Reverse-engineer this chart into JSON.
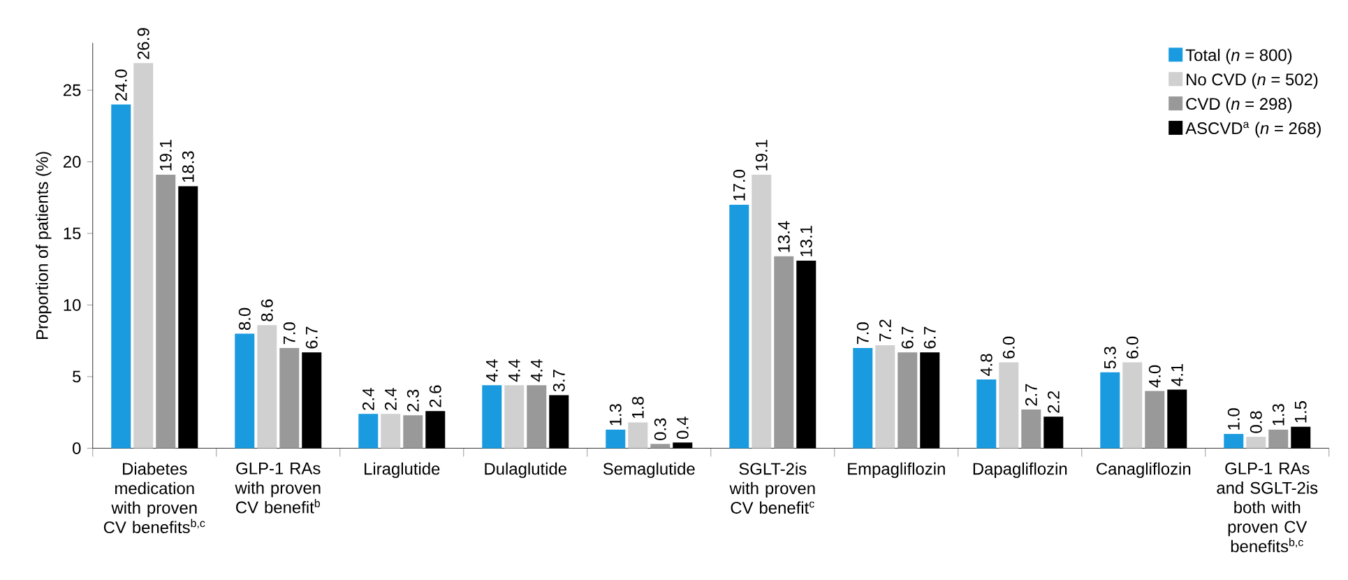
{
  "chart_data": {
    "type": "bar",
    "ylabel": "Proportion of patients (%)",
    "categories": [
      "Diabetes medication with proven CV benefits$^{b,c}$",
      "GLP-1 RAs with proven CV benefit$^{b}$",
      "Liraglutide",
      "Dulaglutide",
      "Semaglutide",
      "SGLT-2is with proven CV benefit$^{c}$",
      "Empagliflozin",
      "Dapagliflozin",
      "Canagliflozin",
      "GLP-1 RAs and SGLT-2is both with proven CV benefits$^{b,c}$"
    ],
    "series": [
      {
        "name": "Total (*n* = 800)",
        "color": "#1a9be0",
        "values": [
          24.0,
          8.0,
          2.4,
          4.4,
          1.3,
          17.0,
          7.0,
          4.8,
          5.3,
          1.0
        ],
        "value_labels": [
          "24.0",
          "8.0",
          "2.4",
          "4.4",
          "1.3",
          "17.0",
          "7.0",
          "4.8",
          "5.3",
          "1.0"
        ]
      },
      {
        "name": "No CVD (*n* = 502)",
        "color": "#d0d0d0",
        "values": [
          26.9,
          8.6,
          2.4,
          4.4,
          1.8,
          19.1,
          7.2,
          6.0,
          6.0,
          0.8
        ],
        "value_labels": [
          "26.9",
          "8.6",
          "2.4",
          "4.4",
          "1.8",
          "19.1",
          "7.2",
          "6.0",
          "6.0",
          "0.8"
        ]
      },
      {
        "name": "CVD (*n* = 298)",
        "color": "#999999",
        "values": [
          19.1,
          7.0,
          2.3,
          4.4,
          0.3,
          13.4,
          6.7,
          2.7,
          4.0,
          1.3
        ],
        "value_labels": [
          "19.1",
          "7.0",
          "2.3",
          "4.4",
          "0.3",
          "13.4",
          "6.7",
          "2.7",
          "4.0",
          "1.3"
        ]
      },
      {
        "name": "ASCVD$^{a}$ (*n* = 268)",
        "color": "#000000",
        "values": [
          18.3,
          6.7,
          2.6,
          3.7,
          0.4,
          13.1,
          6.7,
          2.2,
          4.1,
          1.5
        ],
        "value_labels": [
          "18.3",
          "6.7",
          "2.6",
          "3.7",
          "0.4",
          "13.1",
          "6.7",
          "2.2",
          "4.1",
          "1.5"
        ]
      }
    ],
    "ylim": [
      0,
      28.3
    ],
    "yticks": [
      0,
      5,
      10,
      15,
      20,
      25
    ],
    "grid": false,
    "legend": "top right"
  }
}
